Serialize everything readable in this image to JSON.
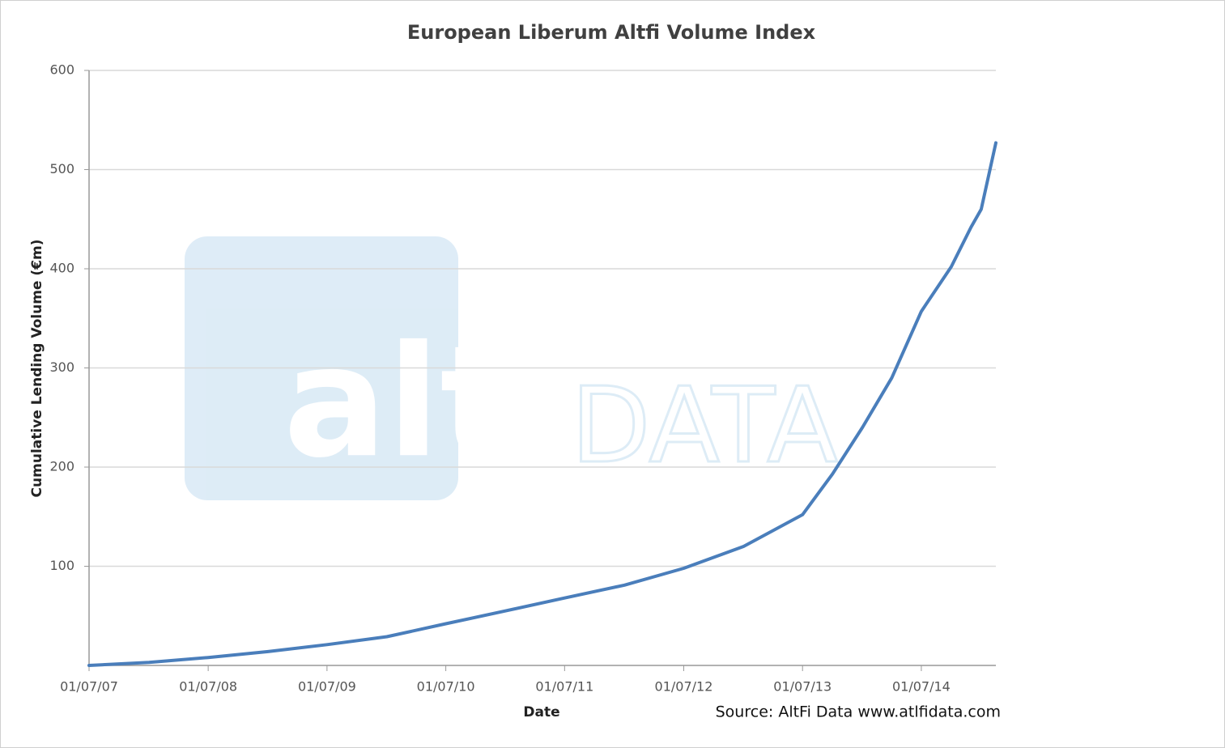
{
  "watermark": {
    "brand": "altfi",
    "suffix": "DATA"
  },
  "chart_data": {
    "type": "line",
    "title": "European Liberum Altfi Volume Index",
    "x_label": "Date",
    "y_label": "Cumulative Lending Volume (€m)",
    "source": "Source: AltFi Data www.atlfidata.com",
    "date_format": "dd/mm/yy",
    "xlim": [
      "01/07/07",
      "15/02/15"
    ],
    "xticks": [
      "01/07/07",
      "01/07/08",
      "01/07/09",
      "01/07/10",
      "01/07/11",
      "01/07/12",
      "01/07/13",
      "01/07/14"
    ],
    "ylim": [
      0,
      600
    ],
    "yticks": [
      100,
      200,
      300,
      400,
      500,
      600
    ],
    "grid": true,
    "series": [
      {
        "name": "Cumulative Lending Volume",
        "color": "#4a7ebb",
        "x": [
          "01/07/07",
          "01/01/08",
          "01/07/08",
          "01/01/09",
          "01/07/09",
          "01/01/10",
          "01/07/10",
          "01/01/11",
          "01/07/11",
          "01/01/12",
          "01/07/12",
          "01/01/13",
          "01/07/13",
          "01/10/13",
          "01/01/14",
          "01/04/14",
          "01/07/14",
          "01/10/14",
          "01/12/14",
          "01/01/15",
          "15/02/15"
        ],
        "values": [
          0,
          3,
          8,
          14,
          21,
          29,
          42,
          55,
          68,
          81,
          98,
          120,
          152,
          193,
          240,
          290,
          357,
          402,
          442,
          460,
          527
        ]
      }
    ]
  }
}
